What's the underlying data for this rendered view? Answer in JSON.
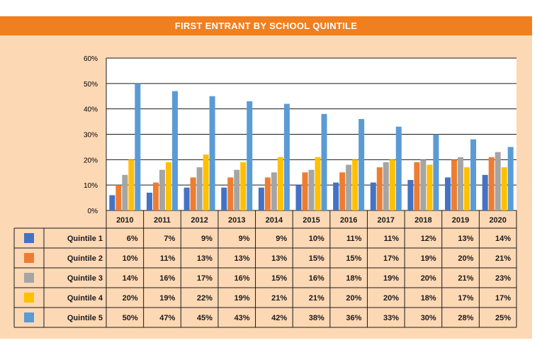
{
  "chart_data": {
    "type": "bar",
    "title": "FIRST ENTRANT BY SCHOOL QUINTILE",
    "categories": [
      "2010",
      "2011",
      "2012",
      "2013",
      "2014",
      "2015",
      "2016",
      "2017",
      "2018",
      "2019",
      "2020"
    ],
    "ylim": [
      0,
      60
    ],
    "yticks": [
      "0%",
      "10%",
      "20%",
      "30%",
      "40%",
      "50%",
      "60%"
    ],
    "grid": true,
    "legend": "data-table",
    "series": [
      {
        "name": "Quintile 1",
        "color": "#4472c4",
        "values": [
          6,
          7,
          9,
          9,
          9,
          10,
          11,
          11,
          12,
          13,
          14
        ],
        "labels": [
          "6%",
          "7%",
          "9%",
          "9%",
          "9%",
          "10%",
          "11%",
          "11%",
          "12%",
          "13%",
          "14%"
        ]
      },
      {
        "name": "Quintile 2",
        "color": "#ed7d31",
        "values": [
          10,
          11,
          13,
          13,
          13,
          15,
          15,
          17,
          19,
          20,
          21
        ],
        "labels": [
          "10%",
          "11%",
          "13%",
          "13%",
          "13%",
          "15%",
          "15%",
          "17%",
          "19%",
          "20%",
          "21%"
        ]
      },
      {
        "name": "Quintile 3",
        "color": "#a5a5a5",
        "values": [
          14,
          16,
          17,
          16,
          15,
          16,
          18,
          19,
          20,
          21,
          23
        ],
        "labels": [
          "14%",
          "16%",
          "17%",
          "16%",
          "15%",
          "16%",
          "18%",
          "19%",
          "20%",
          "21%",
          "23%"
        ]
      },
      {
        "name": "Quintile 4",
        "color": "#ffc000",
        "values": [
          20,
          19,
          22,
          19,
          21,
          21,
          20,
          20,
          18,
          17,
          17
        ],
        "labels": [
          "20%",
          "19%",
          "22%",
          "19%",
          "21%",
          "21%",
          "20%",
          "20%",
          "18%",
          "17%",
          "17%"
        ]
      },
      {
        "name": "Quintile 5",
        "color": "#5b9bd5",
        "values": [
          50,
          47,
          45,
          43,
          42,
          38,
          36,
          33,
          30,
          28,
          25
        ],
        "labels": [
          "50%",
          "47%",
          "45%",
          "43%",
          "42%",
          "38%",
          "36%",
          "33%",
          "30%",
          "28%",
          "25%"
        ]
      }
    ]
  }
}
